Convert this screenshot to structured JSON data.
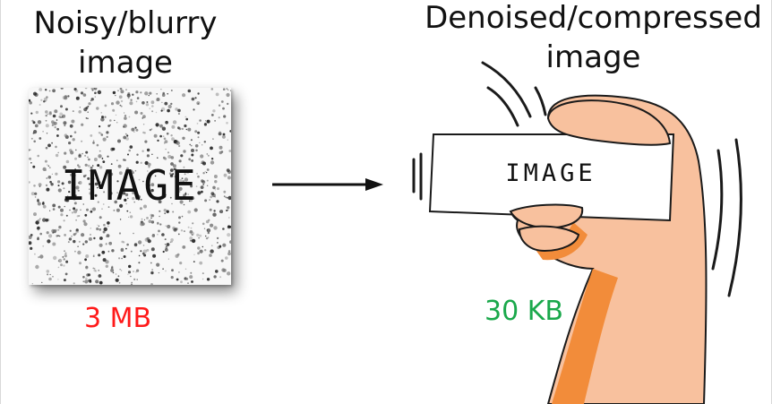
{
  "left": {
    "title_line1": "Noisy/blurry",
    "title_line2": "image",
    "image_word": "IMAGE",
    "size": "3 MB",
    "size_color": "#ff1a1a"
  },
  "right": {
    "title_line1": "Denoised/compressed",
    "title_line2": "image",
    "image_word": "IMAGE",
    "size": "30 KB",
    "size_color": "#1aa84b"
  },
  "colors": {
    "skin": "#f8c19e",
    "skin_shadow": "#f28c3a",
    "outline": "#1a1a1a",
    "arrow": "#111111"
  },
  "icons": {
    "arrow": "right-arrow-icon",
    "hand": "hand-holding-photo-icon"
  }
}
